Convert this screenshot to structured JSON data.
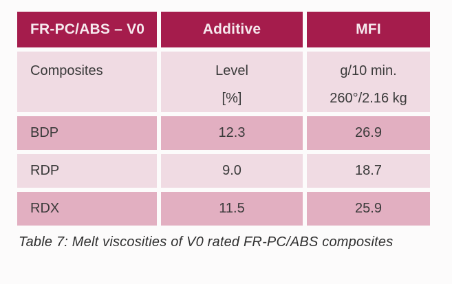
{
  "table": {
    "header": {
      "col1": "FR-PC/ABS – V0",
      "col2": "Additive",
      "col3": "MFI"
    },
    "subheader": {
      "col1": "Composites",
      "col2_line1": "Level",
      "col2_line2": "[%]",
      "col3_line1": "g/10 min.",
      "col3_line2": "260°/2.16 kg"
    },
    "rows": [
      {
        "composite": "BDP",
        "level": "12.3",
        "mfi": "26.9"
      },
      {
        "composite": "RDP",
        "level": "9.0",
        "mfi": "18.7"
      },
      {
        "composite": "RDX",
        "level": "11.5",
        "mfi": "25.9"
      }
    ]
  },
  "caption": "Table 7: Melt viscosities of V0 rated FR-PC/ABS composites",
  "colors": {
    "header_bg": "#A51C4C",
    "header_text": "#F6E9EE",
    "row_light": "#F0DBE3",
    "row_medium": "#E2AFC1",
    "body_text": "#3A3A3A",
    "caption_text": "#2F2F2F",
    "page_bg": "#FCFBFB"
  },
  "chart_data": {
    "type": "table",
    "title": "Table 7: Melt viscosities of V0 rated FR-PC/ABS composites",
    "columns": [
      "FR-PC/ABS – V0 Composites",
      "Additive Level [%]",
      "MFI g/10 min. 260°/2.16 kg"
    ],
    "rows": [
      [
        "BDP",
        12.3,
        26.9
      ],
      [
        "RDP",
        9.0,
        18.7
      ],
      [
        "RDX",
        11.5,
        25.9
      ]
    ]
  }
}
